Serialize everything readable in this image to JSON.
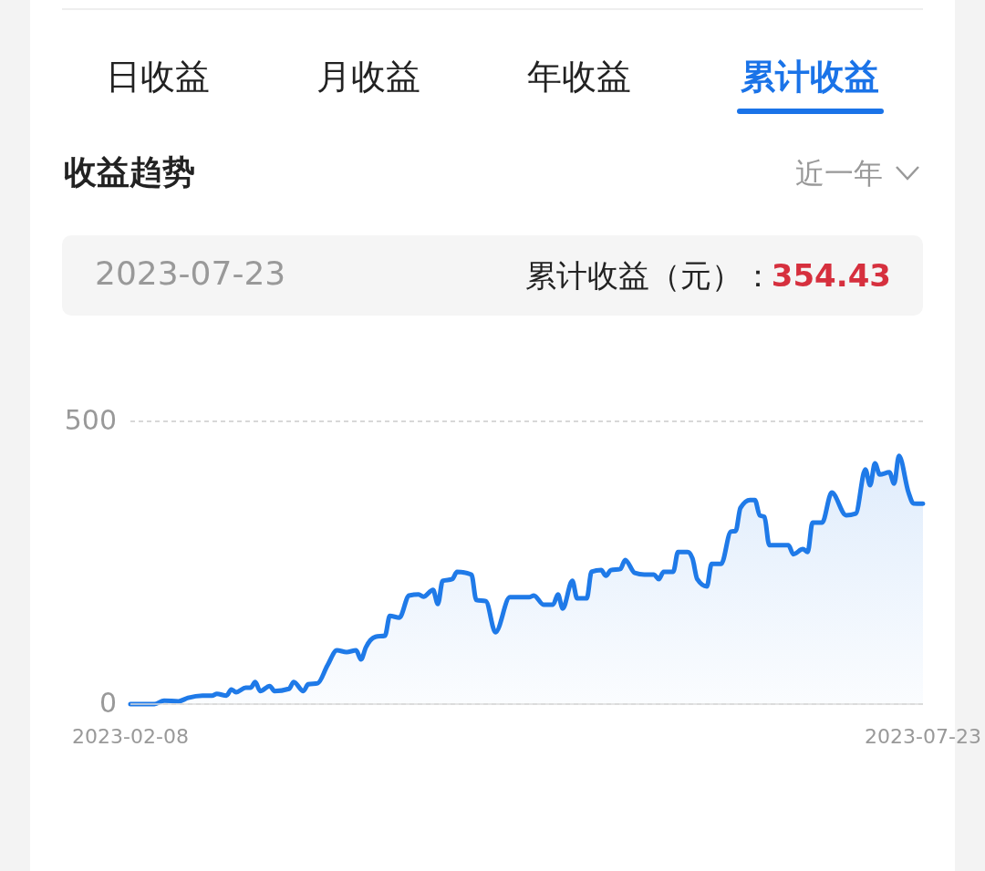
{
  "chart_data": {
    "type": "area",
    "title": "收益趋势",
    "annotations": [
      "日收益",
      "月收益",
      "年收益",
      "累计收益",
      "近一年",
      "2023-07-23",
      "累计收益（元）：",
      "354.43"
    ],
    "x": [
      "2023-02-08",
      "2023-02-13",
      "2023-02-15",
      "2023-02-18",
      "2023-02-20",
      "2023-02-23",
      "2023-02-25",
      "2023-02-26",
      "2023-02-28",
      "2023-03-01",
      "2023-03-02",
      "2023-03-04",
      "2023-03-05",
      "2023-03-06",
      "2023-03-07",
      "2023-03-09",
      "2023-03-10",
      "2023-03-13",
      "2023-03-14",
      "2023-03-16",
      "2023-03-17",
      "2023-03-19",
      "2023-03-21",
      "2023-03-23",
      "2023-03-25",
      "2023-03-27",
      "2023-03-28",
      "2023-03-29",
      "2023-03-31",
      "2023-04-02",
      "2023-04-03",
      "2023-04-05",
      "2023-04-07",
      "2023-04-09",
      "2023-04-10",
      "2023-04-12",
      "2023-04-13",
      "2023-04-14",
      "2023-04-16",
      "2023-04-17",
      "2023-04-20",
      "2023-04-21",
      "2023-04-23",
      "2023-04-25",
      "2023-04-28",
      "2023-05-02",
      "2023-05-03",
      "2023-05-05",
      "2023-05-07",
      "2023-05-08",
      "2023-05-09",
      "2023-05-11",
      "2023-05-12",
      "2023-05-14",
      "2023-05-15",
      "2023-05-17",
      "2023-05-18",
      "2023-05-19",
      "2023-05-21",
      "2023-05-22",
      "2023-05-24",
      "2023-05-26",
      "2023-05-28",
      "2023-05-29",
      "2023-05-30",
      "2023-06-01",
      "2023-06-02",
      "2023-06-04",
      "2023-06-05",
      "2023-06-06",
      "2023-06-08",
      "2023-06-09",
      "2023-06-11",
      "2023-06-13",
      "2023-06-14",
      "2023-06-15",
      "2023-06-17",
      "2023-06-18",
      "2023-06-19",
      "2023-06-20",
      "2023-06-21",
      "2023-06-25",
      "2023-06-26",
      "2023-06-28",
      "2023-06-29",
      "2023-06-30",
      "2023-07-02",
      "2023-07-04",
      "2023-07-07",
      "2023-07-09",
      "2023-07-11",
      "2023-07-12",
      "2023-07-13",
      "2023-07-14",
      "2023-07-16",
      "2023-07-17",
      "2023-07-18",
      "2023-07-20",
      "2023-07-21",
      "2023-07-23"
    ],
    "series": [
      {
        "color": "#1f7ae8",
        "values": [
          0,
          0,
          6,
          5,
          11,
          15,
          15,
          18,
          15,
          26,
          21,
          29,
          29,
          39,
          23,
          32,
          23,
          27,
          39,
          23,
          35,
          37,
          68,
          95,
          92,
          95,
          79,
          100,
          119,
          121,
          156,
          153,
          192,
          194,
          190,
          202,
          177,
          218,
          221,
          234,
          229,
          184,
          182,
          127,
          189,
          189,
          192,
          176,
          176,
          194,
          169,
          218,
          187,
          187,
          234,
          237,
          227,
          237,
          239,
          255,
          232,
          229,
          229,
          221,
          234,
          234,
          269,
          269,
          258,
          221,
          208,
          248,
          248,
          305,
          306,
          347,
          361,
          361,
          334,
          331,
          281,
          281,
          265,
          274,
          269,
          321,
          321,
          374,
          334,
          337,
          415,
          387,
          426,
          406,
          410,
          390,
          439,
          374,
          355,
          354.43
        ]
      }
    ],
    "xlim": [
      "2023-02-08",
      "2023-07-23"
    ],
    "xticks": [
      "2023-02-08",
      "2023-07-23"
    ],
    "ylim": [
      0,
      500
    ],
    "yticks": [
      0,
      500
    ],
    "grid": "y"
  }
}
